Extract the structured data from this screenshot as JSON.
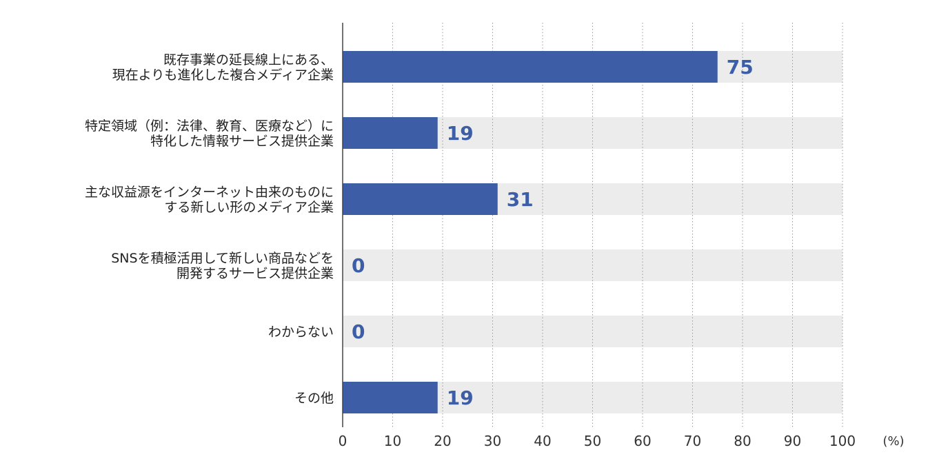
{
  "chart_data": {
    "type": "bar",
    "orientation": "horizontal",
    "categories": [
      [
        "既存事業の延長線上にある、",
        "現在よりも進化した複合メディア企業"
      ],
      [
        "特定領域（例：法律、教育、医療など）に",
        "特化した情報サービス提供企業"
      ],
      [
        "主な収益源をインターネット由来のものに",
        "する新しい形のメディア企業"
      ],
      [
        "SNSを積極活用して新しい商品などを",
        "開発するサービス提供企業"
      ],
      [
        "わからない"
      ],
      [
        "その他"
      ]
    ],
    "values": [
      75,
      19,
      31,
      0,
      0,
      19
    ],
    "value_labels": [
      "75",
      "19",
      "31",
      "0",
      "0",
      "19"
    ],
    "xlim": [
      0,
      100
    ],
    "xticks": [
      0,
      10,
      20,
      30,
      40,
      50,
      60,
      70,
      80,
      90,
      100
    ],
    "xtick_labels": [
      "0",
      "10",
      "20",
      "30",
      "40",
      "50",
      "60",
      "70",
      "80",
      "90",
      "100"
    ],
    "x_unit": "(%)",
    "title": "",
    "xlabel": "",
    "ylabel": "",
    "grid": "vertical dotted",
    "legend": "none",
    "colors": {
      "bar": "#3d5ea6",
      "track": "#ececec",
      "value_text": "#3d5ea6",
      "axis": "#444444",
      "grid": "#999999"
    }
  }
}
